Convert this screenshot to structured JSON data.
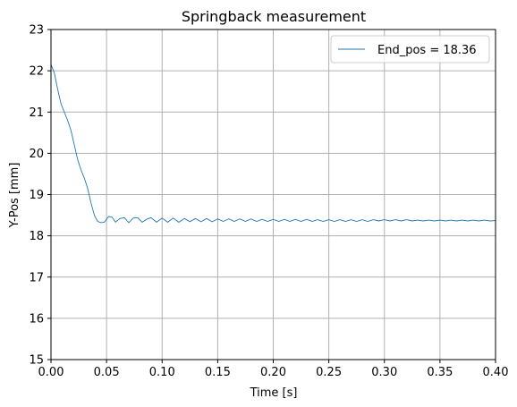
{
  "chart_data": {
    "type": "line",
    "title": "Springback measurement",
    "xlabel": "Time [s]",
    "ylabel": "Y-Pos [mm]",
    "xlim": [
      0.0,
      0.4
    ],
    "ylim": [
      15,
      23
    ],
    "xticks": [
      "0.00",
      "0.05",
      "0.10",
      "0.15",
      "0.20",
      "0.25",
      "0.30",
      "0.35",
      "0.40"
    ],
    "yticks": [
      "15",
      "16",
      "17",
      "18",
      "19",
      "20",
      "21",
      "22",
      "23"
    ],
    "grid": true,
    "legend_position": "top-right",
    "series": [
      {
        "name": "End_pos = 18.36",
        "color": "#1f77b4",
        "x": [
          0.0,
          0.003,
          0.006,
          0.009,
          0.012,
          0.015,
          0.018,
          0.021,
          0.024,
          0.027,
          0.03,
          0.033,
          0.036,
          0.039,
          0.042,
          0.045,
          0.048,
          0.05,
          0.052,
          0.055,
          0.058,
          0.062,
          0.066,
          0.07,
          0.074,
          0.078,
          0.082,
          0.086,
          0.09,
          0.095,
          0.1,
          0.105,
          0.11,
          0.115,
          0.12,
          0.125,
          0.13,
          0.135,
          0.14,
          0.145,
          0.15,
          0.155,
          0.16,
          0.165,
          0.17,
          0.175,
          0.18,
          0.185,
          0.19,
          0.195,
          0.2,
          0.205,
          0.21,
          0.215,
          0.22,
          0.225,
          0.23,
          0.235,
          0.24,
          0.245,
          0.25,
          0.255,
          0.26,
          0.265,
          0.27,
          0.275,
          0.28,
          0.285,
          0.29,
          0.295,
          0.3,
          0.305,
          0.31,
          0.315,
          0.32,
          0.325,
          0.33,
          0.335,
          0.34,
          0.345,
          0.35,
          0.355,
          0.36,
          0.365,
          0.37,
          0.375,
          0.38,
          0.385,
          0.39,
          0.395,
          0.4
        ],
        "y": [
          22.15,
          21.95,
          21.55,
          21.2,
          21.0,
          20.8,
          20.55,
          20.2,
          19.85,
          19.6,
          19.4,
          19.15,
          18.8,
          18.5,
          18.35,
          18.32,
          18.33,
          18.4,
          18.47,
          18.45,
          18.33,
          18.42,
          18.44,
          18.32,
          18.43,
          18.44,
          18.33,
          18.4,
          18.44,
          18.33,
          18.43,
          18.33,
          18.43,
          18.33,
          18.42,
          18.34,
          18.42,
          18.34,
          18.42,
          18.34,
          18.41,
          18.35,
          18.41,
          18.35,
          18.41,
          18.35,
          18.41,
          18.35,
          18.4,
          18.35,
          18.4,
          18.35,
          18.4,
          18.35,
          18.4,
          18.35,
          18.4,
          18.35,
          18.39,
          18.35,
          18.39,
          18.35,
          18.39,
          18.35,
          18.39,
          18.35,
          18.39,
          18.35,
          18.39,
          18.36,
          18.39,
          18.36,
          18.39,
          18.36,
          18.39,
          18.36,
          18.38,
          18.36,
          18.38,
          18.36,
          18.38,
          18.36,
          18.38,
          18.36,
          18.38,
          18.36,
          18.38,
          18.36,
          18.38,
          18.36,
          18.37
        ]
      }
    ]
  }
}
